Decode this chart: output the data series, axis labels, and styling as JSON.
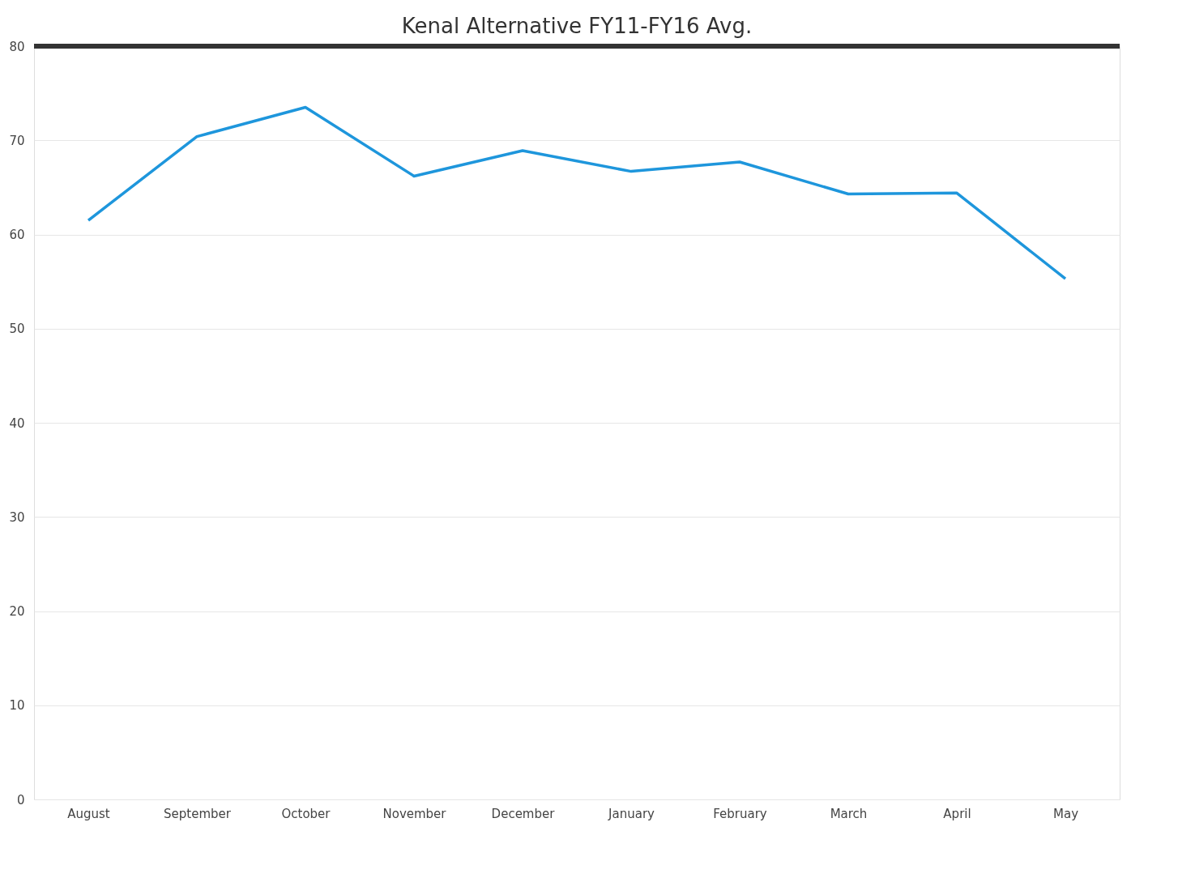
{
  "chart_data": {
    "type": "line",
    "title": "Kenal Alternative FY11-FY16 Avg.",
    "categories": [
      "August",
      "September",
      "October",
      "November",
      "December",
      "January",
      "February",
      "March",
      "April",
      "May"
    ],
    "series": [
      {
        "color": "#1e96dc",
        "values": [
          61.5,
          70.4,
          73.5,
          66.2,
          68.9,
          66.7,
          67.7,
          64.3,
          64.4,
          55.3
        ]
      }
    ],
    "ylim": [
      0,
      80
    ],
    "yticks": [
      0,
      10,
      20,
      30,
      40,
      50,
      60,
      70,
      80
    ],
    "grid": "y",
    "marker": "none",
    "line_style": "solid",
    "ref_lines": [
      {
        "axis": "y",
        "value": 80,
        "color": "#333333",
        "line_style": "solid"
      }
    ]
  }
}
